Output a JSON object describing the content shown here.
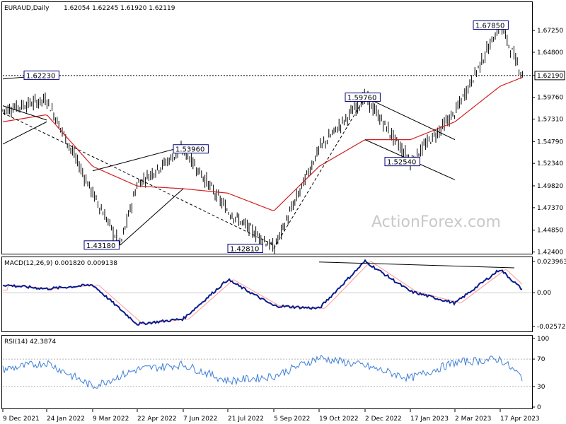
{
  "header": {
    "symbol": "EURAUD,Daily",
    "ohlc": "1.62054 1.62245 1.61920 1.62119"
  },
  "watermark": "ActionForex.com",
  "colors": {
    "candle": "#000000",
    "ma": "#d42020",
    "macd": "#0a1a8c",
    "signal": "#ff9a9a",
    "rsi": "#3d7fd9",
    "grid": "#000000",
    "annotation_border": "#000080"
  },
  "chart_data": [
    {
      "type": "candlestick",
      "title": "EURAUD,Daily",
      "ylim": [
        1.4237,
        1.6955
      ],
      "y_ticks": [
        "1.67250",
        "1.64800",
        "1.62190",
        "1.59760",
        "1.57310",
        "1.54790",
        "1.52340",
        "1.49820",
        "1.47370",
        "1.44850",
        "1.42400"
      ],
      "x_ticks": [
        "9 Dec 2021",
        "24 Jan 2022",
        "9 Mar 2022",
        "22 Apr 2022",
        "7 Jun 2022",
        "21 Jul 2022",
        "5 Sep 2022",
        "19 Oct 2022",
        "2 Dec 2022",
        "17 Jan 2023",
        "2 Mar 2023",
        "17 Apr 2023"
      ],
      "current_price": "1.62190",
      "annotations": [
        "1.62230",
        "1.53960",
        "1.43180",
        "1.42810",
        "1.59760",
        "1.52540",
        "1.67850"
      ],
      "key_points": [
        {
          "date": "9 Dec 2021",
          "close": 1.583
        },
        {
          "date": "24 Jan 2022",
          "close": 1.595
        },
        {
          "date": "9 Mar 2022",
          "close": 1.49
        },
        {
          "date": "15 Mar 2022",
          "close": 1.4318
        },
        {
          "date": "22 Apr 2022",
          "close": 1.5
        },
        {
          "date": "7 Jun 2022",
          "close": 1.5396
        },
        {
          "date": "21 Jul 2022",
          "close": 1.47
        },
        {
          "date": "5 Sep 2022",
          "close": 1.4281
        },
        {
          "date": "19 Oct 2022",
          "close": 1.54
        },
        {
          "date": "2 Dec 2022",
          "close": 1.5976
        },
        {
          "date": "17 Jan 2023",
          "close": 1.5254
        },
        {
          "date": "2 Mar 2023",
          "close": 1.58
        },
        {
          "date": "17 Apr 2023",
          "close": 1.6785
        },
        {
          "date": "27 Apr 2023",
          "close": 1.62119
        }
      ],
      "moving_average_points": [
        {
          "date": "9 Dec 2021",
          "value": 1.57
        },
        {
          "date": "24 Jan 2022",
          "value": 1.578
        },
        {
          "date": "9 Mar 2022",
          "value": 1.52
        },
        {
          "date": "22 Apr 2022",
          "value": 1.498
        },
        {
          "date": "7 Jun 2022",
          "value": 1.495
        },
        {
          "date": "21 Jul 2022",
          "value": 1.49
        },
        {
          "date": "5 Sep 2022",
          "value": 1.47
        },
        {
          "date": "19 Oct 2022",
          "value": 1.52
        },
        {
          "date": "2 Dec 2022",
          "value": 1.55
        },
        {
          "date": "17 Jan 2023",
          "value": 1.55
        },
        {
          "date": "2 Mar 2023",
          "value": 1.57
        },
        {
          "date": "17 Apr 2023",
          "value": 1.61
        },
        {
          "date": "27 Apr 2023",
          "value": 1.62
        }
      ]
    },
    {
      "type": "line",
      "title": "MACD(12,26,9) 0.001820 0.009138",
      "ylim": [
        -0.0285,
        0.0255
      ],
      "y_ticks": [
        "0.023963",
        "0.00",
        "-0.025726"
      ],
      "x_ticks": [
        "9 Dec 2021",
        "24 Jan 2022",
        "9 Mar 2022",
        "22 Apr 2022",
        "7 Jun 2022",
        "21 Jul 2022",
        "5 Sep 2022",
        "19 Oct 2022",
        "2 Dec 2022",
        "17 Jan 2023",
        "2 Mar 2023",
        "17 Apr 2023"
      ],
      "series": [
        {
          "values": [
            0.006,
            0.003,
            0.006,
            -0.024,
            -0.02,
            0.01,
            -0.01,
            -0.012,
            0.024,
            0.001,
            -0.008,
            0.018,
            0.002
          ]
        }
      ]
    },
    {
      "type": "line",
      "title": "RSI(14) 42.3874",
      "ylim": [
        0,
        100
      ],
      "y_ticks": [
        "100",
        "70",
        "30",
        "0"
      ],
      "x_ticks": [
        "9 Dec 2021",
        "24 Jan 2022",
        "9 Mar 2022",
        "22 Apr 2022",
        "7 Jun 2022",
        "21 Jul 2022",
        "5 Sep 2022",
        "19 Oct 2022",
        "2 Dec 2022",
        "17 Jan 2023",
        "2 Mar 2023",
        "17 Apr 2023"
      ],
      "series": [
        {
          "values": [
            55,
            65,
            30,
            55,
            62,
            38,
            45,
            72,
            60,
            42,
            65,
            70,
            42.3874
          ]
        }
      ]
    }
  ]
}
